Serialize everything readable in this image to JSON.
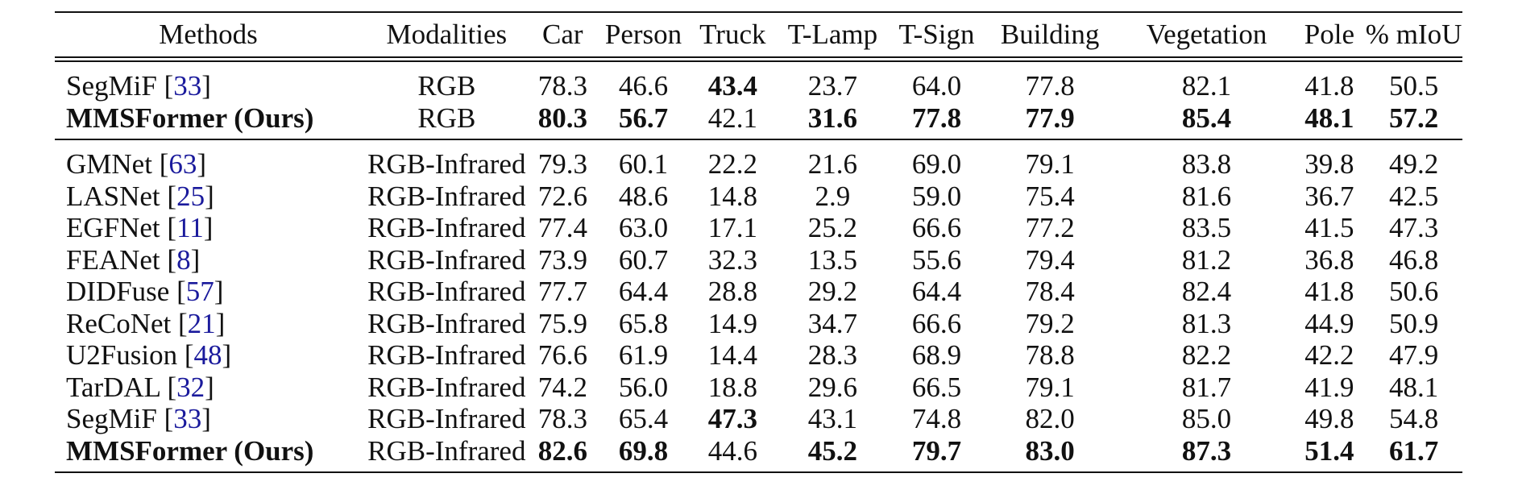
{
  "table": {
    "headers": [
      "Methods",
      "Modalities",
      "Car",
      "Person",
      "Truck",
      "T-Lamp",
      "T-Sign",
      "Building",
      "Vegetation",
      "Pole",
      "% mIoU"
    ],
    "groups": [
      {
        "rows": [
          {
            "method": "SegMiF",
            "cite": "33",
            "method_bold": false,
            "modality": "RGB",
            "values": [
              "78.3",
              "46.6",
              "43.4",
              "23.7",
              "64.0",
              "77.8",
              "82.1",
              "41.8",
              "50.5"
            ],
            "bold": [
              false,
              false,
              true,
              false,
              false,
              false,
              false,
              false,
              false
            ]
          },
          {
            "method": "MMSFormer (Ours)",
            "cite": "",
            "method_bold": true,
            "modality": "RGB",
            "values": [
              "80.3",
              "56.7",
              "42.1",
              "31.6",
              "77.8",
              "77.9",
              "85.4",
              "48.1",
              "57.2"
            ],
            "bold": [
              true,
              true,
              false,
              true,
              true,
              true,
              true,
              true,
              true
            ]
          }
        ]
      },
      {
        "rows": [
          {
            "method": "GMNet",
            "cite": "63",
            "method_bold": false,
            "modality": "RGB-Infrared",
            "values": [
              "79.3",
              "60.1",
              "22.2",
              "21.6",
              "69.0",
              "79.1",
              "83.8",
              "39.8",
              "49.2"
            ],
            "bold": [
              false,
              false,
              false,
              false,
              false,
              false,
              false,
              false,
              false
            ]
          },
          {
            "method": "LASNet",
            "cite": "25",
            "method_bold": false,
            "modality": "RGB-Infrared",
            "values": [
              "72.6",
              "48.6",
              "14.8",
              "2.9",
              "59.0",
              "75.4",
              "81.6",
              "36.7",
              "42.5"
            ],
            "bold": [
              false,
              false,
              false,
              false,
              false,
              false,
              false,
              false,
              false
            ]
          },
          {
            "method": "EGFNet",
            "cite": "11",
            "method_bold": false,
            "modality": "RGB-Infrared",
            "values": [
              "77.4",
              "63.0",
              "17.1",
              "25.2",
              "66.6",
              "77.2",
              "83.5",
              "41.5",
              "47.3"
            ],
            "bold": [
              false,
              false,
              false,
              false,
              false,
              false,
              false,
              false,
              false
            ]
          },
          {
            "method": "FEANet",
            "cite": "8",
            "method_bold": false,
            "modality": "RGB-Infrared",
            "values": [
              "73.9",
              "60.7",
              "32.3",
              "13.5",
              "55.6",
              "79.4",
              "81.2",
              "36.8",
              "46.8"
            ],
            "bold": [
              false,
              false,
              false,
              false,
              false,
              false,
              false,
              false,
              false
            ]
          },
          {
            "method": "DIDFuse",
            "cite": "57",
            "method_bold": false,
            "modality": "RGB-Infrared",
            "values": [
              "77.7",
              "64.4",
              "28.8",
              "29.2",
              "64.4",
              "78.4",
              "82.4",
              "41.8",
              "50.6"
            ],
            "bold": [
              false,
              false,
              false,
              false,
              false,
              false,
              false,
              false,
              false
            ]
          },
          {
            "method": "ReCoNet",
            "cite": "21",
            "method_bold": false,
            "modality": "RGB-Infrared",
            "values": [
              "75.9",
              "65.8",
              "14.9",
              "34.7",
              "66.6",
              "79.2",
              "81.3",
              "44.9",
              "50.9"
            ],
            "bold": [
              false,
              false,
              false,
              false,
              false,
              false,
              false,
              false,
              false
            ]
          },
          {
            "method": "U2Fusion",
            "cite": "48",
            "method_bold": false,
            "modality": "RGB-Infrared",
            "values": [
              "76.6",
              "61.9",
              "14.4",
              "28.3",
              "68.9",
              "78.8",
              "82.2",
              "42.2",
              "47.9"
            ],
            "bold": [
              false,
              false,
              false,
              false,
              false,
              false,
              false,
              false,
              false
            ]
          },
          {
            "method": "TarDAL",
            "cite": "32",
            "method_bold": false,
            "modality": "RGB-Infrared",
            "values": [
              "74.2",
              "56.0",
              "18.8",
              "29.6",
              "66.5",
              "79.1",
              "81.7",
              "41.9",
              "48.1"
            ],
            "bold": [
              false,
              false,
              false,
              false,
              false,
              false,
              false,
              false,
              false
            ]
          },
          {
            "method": "SegMiF",
            "cite": "33",
            "method_bold": false,
            "modality": "RGB-Infrared",
            "values": [
              "78.3",
              "65.4",
              "47.3",
              "43.1",
              "74.8",
              "82.0",
              "85.0",
              "49.8",
              "54.8"
            ],
            "bold": [
              false,
              false,
              true,
              false,
              false,
              false,
              false,
              false,
              false
            ]
          },
          {
            "method": "MMSFormer (Ours)",
            "cite": "",
            "method_bold": true,
            "modality": "RGB-Infrared",
            "values": [
              "82.6",
              "69.8",
              "44.6",
              "45.2",
              "79.7",
              "83.0",
              "87.3",
              "51.4",
              "61.7"
            ],
            "bold": [
              true,
              true,
              false,
              true,
              true,
              true,
              true,
              true,
              true
            ]
          }
        ]
      }
    ]
  }
}
